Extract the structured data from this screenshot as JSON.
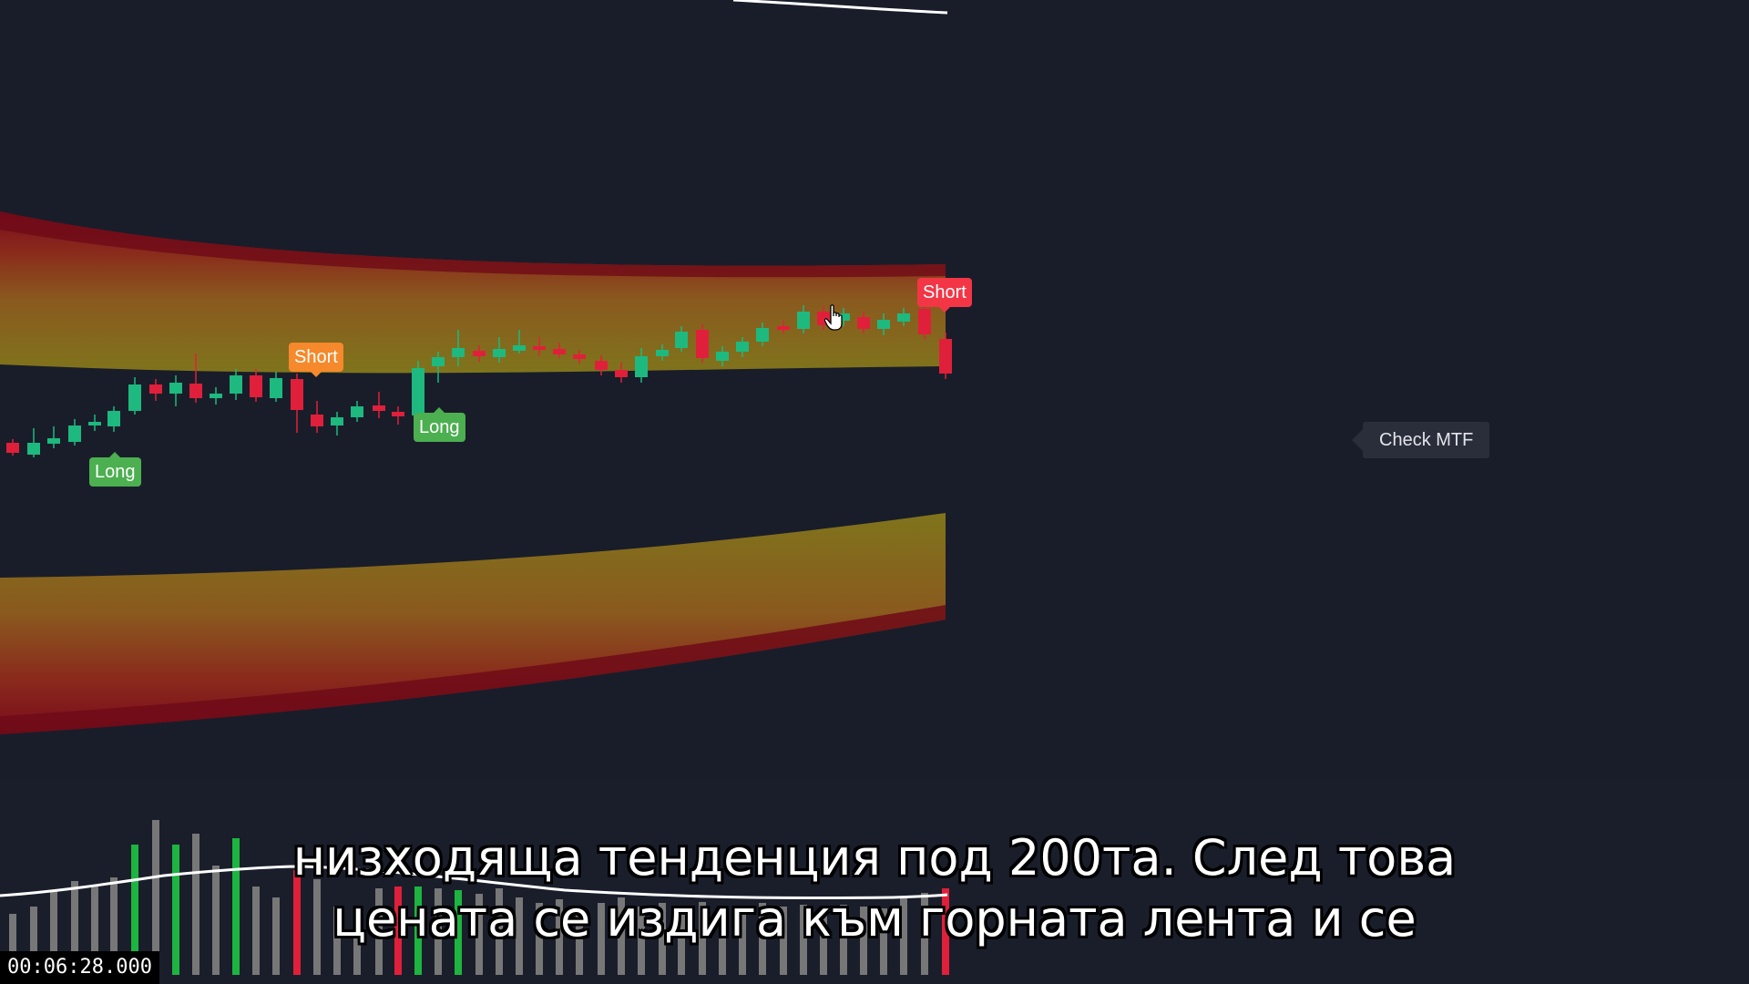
{
  "chart": {
    "signals": [
      {
        "label": "Long",
        "type": "long"
      },
      {
        "label": "Short",
        "type": "short"
      },
      {
        "label": "Long",
        "type": "long"
      },
      {
        "label": "Short",
        "type": "short"
      }
    ],
    "check_mtf_label": "Check MTF",
    "colors": {
      "bull": "#1db97f",
      "bear": "#e0203a",
      "long_label": "#4caf50",
      "short_label_orange": "#f5892b",
      "short_label_red": "#f23645",
      "band_inner": "#8b7a1c",
      "band_outer": "#7a0c1c",
      "background": "#191d29"
    }
  },
  "subtitles": {
    "line1": "низходяща тенденция под 200та. След това",
    "line2": "цената се издига към горната лента и се"
  },
  "video": {
    "timestamp": "00:06:28.000"
  }
}
